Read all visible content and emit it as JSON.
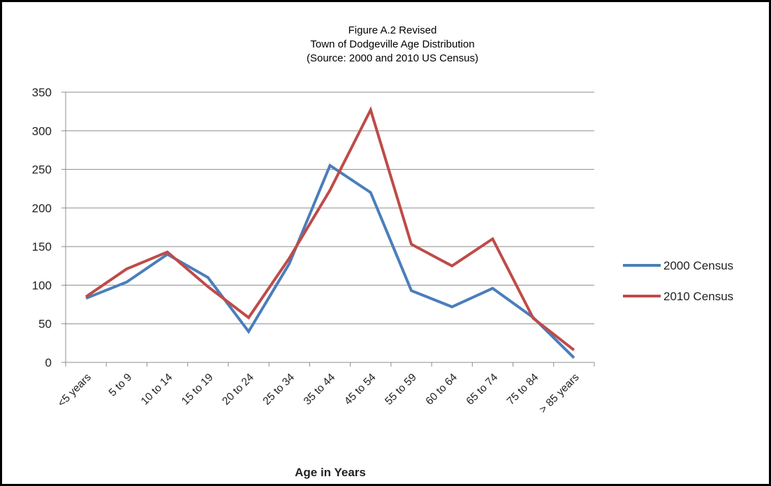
{
  "chart_data": {
    "type": "line",
    "title": "Figure A.2 Revised",
    "subtitle": "Town of Dodgeville Age Distribution",
    "source": "(Source: 2000 and 2010 US Census)",
    "xlabel": "Age in Years",
    "ylabel": "",
    "ylim": [
      0,
      350
    ],
    "yticks": [
      0,
      50,
      100,
      150,
      200,
      250,
      300,
      350
    ],
    "grid": true,
    "legend_position": "right",
    "categories": [
      "<5 years",
      "5 to 9",
      "10 to 14",
      "15 to 19",
      "20 to 24",
      "25 to 34",
      "35 to 44",
      "45 to 54",
      "55 to 59",
      "60 to 64",
      "65 to 74",
      "75 to 84",
      "> 85 years"
    ],
    "series": [
      {
        "name": "2000 Census",
        "color": "#4a7ebb",
        "values": [
          83,
          104,
          140,
          110,
          40,
          128,
          255,
          220,
          93,
          72,
          96,
          58,
          6
        ]
      },
      {
        "name": "2010 Census",
        "color": "#be4b48",
        "values": [
          85,
          121,
          143,
          98,
          58,
          135,
          223,
          327,
          153,
          125,
          160,
          57,
          16
        ]
      }
    ]
  }
}
